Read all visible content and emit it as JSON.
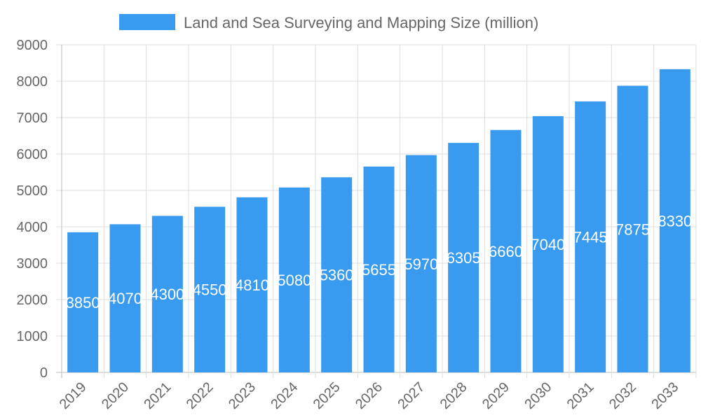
{
  "chart_data": {
    "type": "bar",
    "categories": [
      "2019",
      "2020",
      "2021",
      "2022",
      "2023",
      "2024",
      "2025",
      "2026",
      "2027",
      "2028",
      "2029",
      "2030",
      "2031",
      "2032",
      "2033"
    ],
    "series": [
      {
        "name": "Land and Sea Surveying and Mapping Size (million)",
        "values": [
          3850,
          4070,
          4300,
          4550,
          4810,
          5080,
          5360,
          5655,
          5970,
          6305,
          6660,
          7040,
          7445,
          7875,
          8330
        ],
        "color": "#389BF0"
      }
    ],
    "ylim": [
      0,
      9000
    ],
    "yticks": [
      0,
      1000,
      2000,
      3000,
      4000,
      5000,
      6000,
      7000,
      8000,
      9000
    ],
    "grid": true,
    "legend_position": "top",
    "data_labels": true,
    "xtick_rotation": -45
  }
}
